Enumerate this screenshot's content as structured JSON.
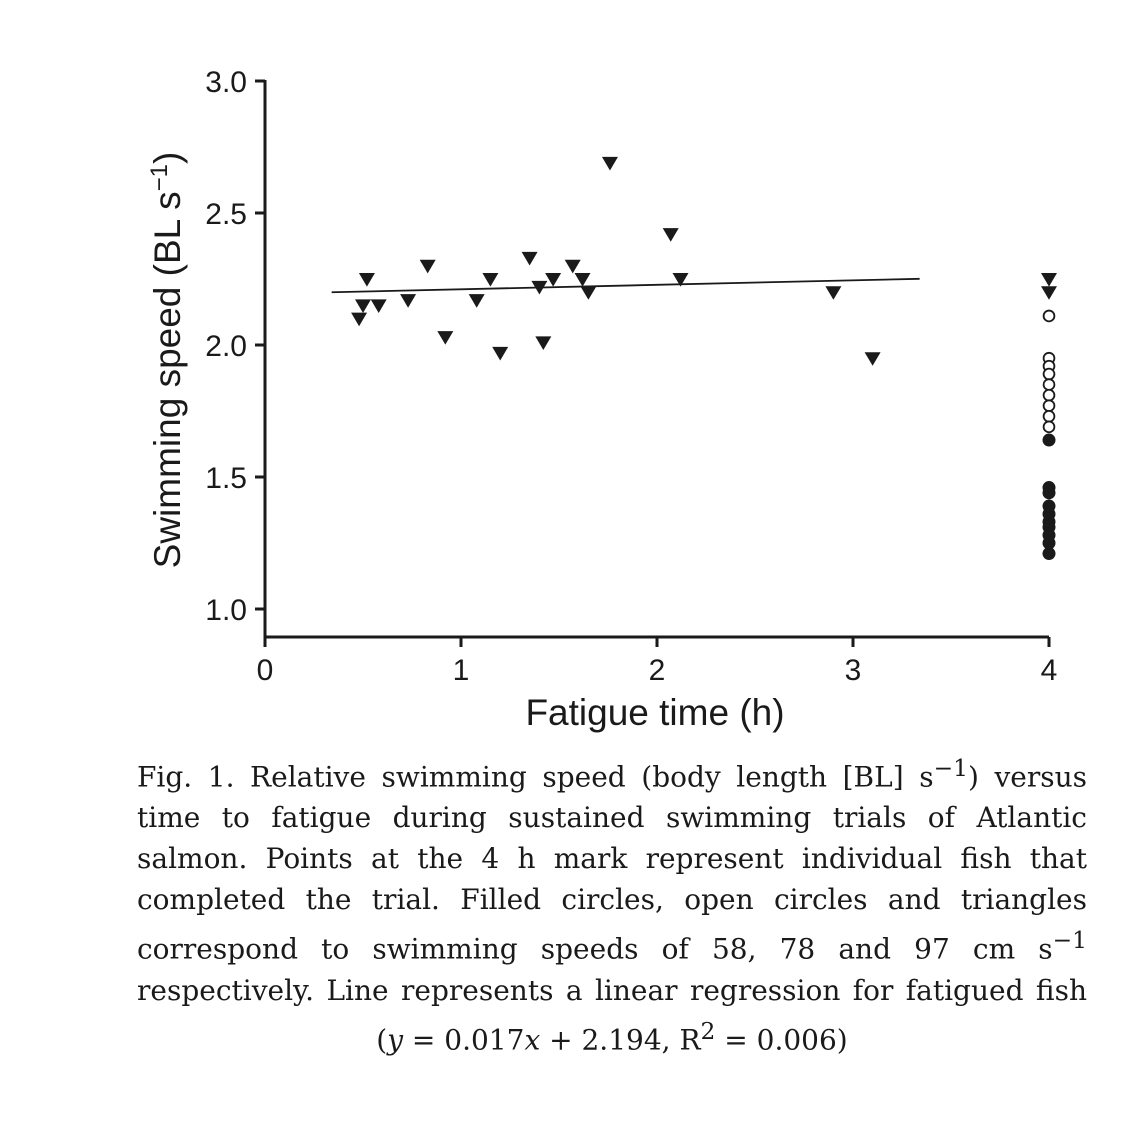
{
  "chart_data": {
    "type": "scatter",
    "xlabel": "Fatigue time (h)",
    "ylabel_main": "Swimming speed (BL s",
    "ylabel_sup": "−1",
    "ylabel_close": ")",
    "xlim": [
      0,
      4
    ],
    "ylim": [
      0.9,
      3.0
    ],
    "x_ticks": [
      "0",
      "1",
      "2",
      "3",
      "4"
    ],
    "y_ticks": [
      "1.0",
      "1.5",
      "2.0",
      "2.5",
      "3.0"
    ],
    "x_tick_values": [
      0,
      1,
      2,
      3,
      4
    ],
    "y_tick_values": [
      1.0,
      1.5,
      2.0,
      2.5,
      3.0
    ],
    "grid": false,
    "series": [
      {
        "marker": "triangle-down-filled",
        "points": [
          [
            0.48,
            2.1
          ],
          [
            0.5,
            2.15
          ],
          [
            0.52,
            2.25
          ],
          [
            0.58,
            2.15
          ],
          [
            0.73,
            2.17
          ],
          [
            0.83,
            2.3
          ],
          [
            0.92,
            2.03
          ],
          [
            1.08,
            2.17
          ],
          [
            1.15,
            2.25
          ],
          [
            1.2,
            1.97
          ],
          [
            1.35,
            2.33
          ],
          [
            1.4,
            2.22
          ],
          [
            1.42,
            2.01
          ],
          [
            1.47,
            2.25
          ],
          [
            1.57,
            2.3
          ],
          [
            1.62,
            2.25
          ],
          [
            1.65,
            2.2
          ],
          [
            1.76,
            2.69
          ],
          [
            2.07,
            2.42
          ],
          [
            2.12,
            2.25
          ],
          [
            2.9,
            2.2
          ],
          [
            3.1,
            1.95
          ],
          [
            4.0,
            2.25
          ],
          [
            4.0,
            2.2
          ]
        ]
      },
      {
        "marker": "circle-open",
        "points": [
          [
            4.0,
            2.11
          ],
          [
            4.0,
            1.95
          ],
          [
            4.0,
            1.92
          ],
          [
            4.0,
            1.89
          ],
          [
            4.0,
            1.85
          ],
          [
            4.0,
            1.81
          ],
          [
            4.0,
            1.77
          ],
          [
            4.0,
            1.73
          ],
          [
            4.0,
            1.69
          ]
        ]
      },
      {
        "marker": "circle-filled",
        "points": [
          [
            4.0,
            1.64
          ],
          [
            4.0,
            1.46
          ],
          [
            4.0,
            1.44
          ],
          [
            4.0,
            1.39
          ],
          [
            4.0,
            1.36
          ],
          [
            4.0,
            1.33
          ],
          [
            4.0,
            1.31
          ],
          [
            4.0,
            1.28
          ],
          [
            4.0,
            1.25
          ],
          [
            4.0,
            1.21
          ]
        ]
      }
    ],
    "regression": {
      "slope": 0.017,
      "intercept": 2.194,
      "x_range": [
        0.34,
        3.34
      ]
    }
  },
  "caption": {
    "line1_pre": "Fig. 1. Relative swimming speed (body length [BL] s",
    "line1_sup": "−1",
    "line1_post": ") versus time to fatigue during sustained swimming trials of Atlantic salmon. Points at the 4 h mark represent individual fish that completed the trial. Filled circles, open circles and triangles correspond to swimming speeds of 58, 78 and 97 cm s",
    "line2_sup": "−1",
    "line2_post": " respectively. Line represents a linear regression for fatigued fish (",
    "eq_y": "y",
    "eq_mid": " = 0.017",
    "eq_x": "x",
    "eq_rest": " + 2.194, R",
    "eq_sup": "2",
    "eq_end": " = 0.006)"
  },
  "colors": {
    "ink": "#1a1a1a",
    "background": "#ffffff"
  }
}
